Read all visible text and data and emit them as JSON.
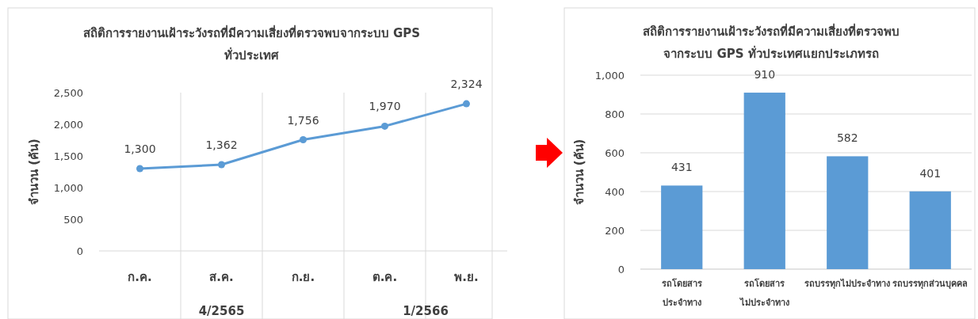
{
  "chart_data": [
    {
      "type": "line",
      "title": "สถิติการรายงานเฝ้าระวังรถที่มีความเสี่ยงที่ตรวจพบจากระบบ GPS\nทั่วประเทศ",
      "ylabel": "จำนวน (คัน)",
      "categories": [
        "ก.ค.",
        "ส.ค.",
        "ก.ย.",
        "ต.ค.",
        "พ.ย."
      ],
      "series": [
        {
          "color": "#5b9bd5",
          "values": [
            1300,
            1362,
            1756,
            1970,
            2324
          ]
        }
      ],
      "ylim": [
        0,
        2500
      ],
      "yticks": [
        {
          "value": 0,
          "label": "0"
        },
        {
          "value": 500,
          "label": "500"
        },
        {
          "value": 1000,
          "label": "1,000"
        },
        {
          "value": 1500,
          "label": "1,500"
        },
        {
          "value": 2000,
          "label": "2,000"
        },
        {
          "value": 2500,
          "label": "2,500"
        }
      ],
      "value_labels": [
        "1,300",
        "1,362",
        "1,756",
        "1,970",
        "2,324"
      ],
      "marker": "circle",
      "grid": "x",
      "annotations": [
        "4/2565",
        "1/2566"
      ]
    },
    {
      "type": "bar",
      "title": "สถิติการรายงานเฝ้าระวังรถที่มีความเสี่ยงที่ตรวจพบ\nจากระบบ GPS ทั่วประเทศแยกประเภทรถ",
      "ylabel": "จำนวน (คัน)",
      "categories": [
        "รถโดยสาร\nประจำทาง",
        "รถโดยสาร\nไม่ประจำทาง",
        "รถบรรทุกไม่ประจำทาง",
        "รถบรรทุกส่วนบุคคล"
      ],
      "series": [
        {
          "color": "#5b9bd5",
          "values": [
            431,
            910,
            582,
            401
          ]
        }
      ],
      "ylim": [
        0,
        1000
      ],
      "yticks": [
        {
          "value": 0,
          "label": "0"
        },
        {
          "value": 200,
          "label": "200"
        },
        {
          "value": 400,
          "label": "400"
        },
        {
          "value": 600,
          "label": "600"
        },
        {
          "value": 800,
          "label": "800"
        },
        {
          "value": 1000,
          "label": "1,000"
        }
      ],
      "value_labels": [
        "431",
        "910",
        "582",
        "401"
      ],
      "grid": "y"
    }
  ]
}
